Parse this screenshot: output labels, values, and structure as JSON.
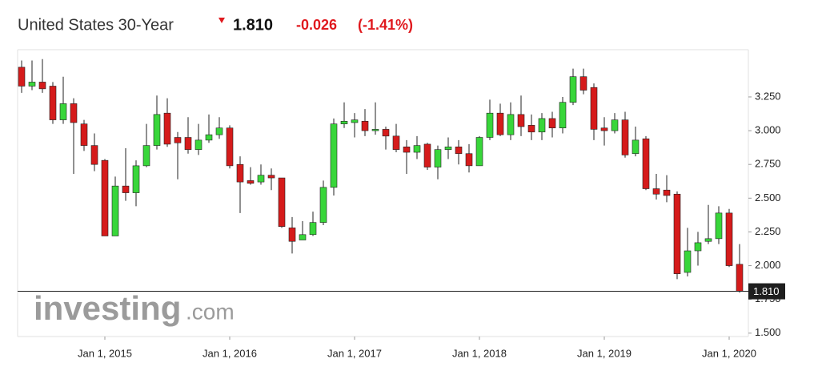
{
  "header": {
    "title": "United States 30-Year",
    "price": "1.810",
    "change": "-0.026",
    "change_pct": "(-1.41%)"
  },
  "watermark": {
    "brand": "investing",
    "suffix": ".com"
  },
  "chart_data": {
    "type": "candlestick",
    "categories": [
      null,
      null,
      null,
      null,
      null,
      null,
      null,
      null,
      "Jan 1, 2015",
      null,
      null,
      null,
      null,
      null,
      null,
      null,
      null,
      null,
      null,
      null,
      "Jan 1, 2016",
      null,
      null,
      null,
      null,
      null,
      null,
      null,
      null,
      null,
      null,
      null,
      "Jan 1, 2017",
      null,
      null,
      null,
      null,
      null,
      null,
      null,
      null,
      null,
      null,
      null,
      "Jan 1, 2018",
      null,
      null,
      null,
      null,
      null,
      null,
      null,
      null,
      null,
      null,
      null,
      "Jan 1, 2019",
      null,
      null,
      null,
      null,
      null,
      null,
      null,
      null,
      null,
      null,
      null,
      "Jan 1, 2020",
      null
    ],
    "open": [
      3.47,
      3.33,
      3.36,
      3.33,
      3.08,
      3.2,
      3.05,
      2.89,
      2.78,
      2.22,
      2.59,
      2.54,
      2.74,
      2.89,
      3.13,
      2.95,
      2.95,
      2.86,
      2.93,
      2.97,
      3.02,
      2.75,
      2.63,
      2.62,
      2.67,
      2.65,
      2.28,
      2.19,
      2.23,
      2.32,
      2.58,
      3.05,
      3.06,
      3.07,
      3.0,
      3.01,
      2.96,
      2.88,
      2.84,
      2.9,
      2.73,
      2.86,
      2.88,
      2.83,
      2.74,
      2.95,
      3.13,
      2.97,
      3.12,
      3.04,
      2.99,
      3.09,
      3.02,
      3.21,
      3.4,
      3.32,
      3.02,
      3.0,
      3.08,
      2.83,
      2.94,
      2.57,
      2.56,
      2.53,
      1.95,
      2.11,
      2.18,
      2.2,
      2.39,
      2.01
    ],
    "high": [
      3.52,
      3.52,
      3.53,
      3.36,
      3.4,
      3.24,
      3.08,
      2.98,
      2.79,
      2.66,
      2.87,
      2.78,
      3.05,
      3.26,
      3.24,
      2.99,
      3.1,
      3.05,
      3.12,
      3.1,
      3.04,
      2.81,
      2.73,
      2.75,
      2.72,
      2.65,
      2.36,
      2.33,
      2.4,
      2.63,
      3.09,
      3.21,
      3.13,
      3.16,
      3.21,
      3.03,
      3.05,
      2.93,
      2.96,
      2.91,
      2.89,
      2.95,
      2.93,
      2.9,
      2.96,
      3.23,
      3.2,
      3.21,
      3.26,
      3.12,
      3.13,
      3.14,
      3.25,
      3.46,
      3.46,
      3.35,
      3.1,
      3.13,
      3.14,
      3.03,
      2.96,
      2.68,
      2.67,
      2.55,
      2.28,
      2.25,
      2.45,
      2.44,
      2.42,
      2.16
    ],
    "low": [
      3.28,
      3.3,
      3.28,
      3.05,
      3.05,
      2.68,
      2.85,
      2.7,
      2.22,
      2.22,
      2.48,
      2.44,
      2.73,
      2.86,
      2.88,
      2.64,
      2.83,
      2.82,
      2.91,
      2.94,
      2.72,
      2.39,
      2.6,
      2.6,
      2.56,
      2.28,
      2.09,
      2.19,
      2.22,
      2.3,
      2.52,
      3.02,
      2.95,
      2.96,
      2.97,
      2.86,
      2.84,
      2.68,
      2.79,
      2.71,
      2.64,
      2.79,
      2.75,
      2.69,
      2.74,
      2.93,
      2.96,
      2.93,
      2.96,
      2.93,
      2.93,
      2.95,
      2.98,
      3.19,
      3.27,
      2.93,
      2.89,
      2.98,
      2.8,
      2.81,
      2.56,
      2.49,
      2.47,
      1.9,
      1.92,
      2.0,
      2.16,
      2.16,
      1.99,
      1.8
    ],
    "close": [
      3.33,
      3.36,
      3.31,
      3.08,
      3.2,
      3.06,
      2.89,
      2.75,
      2.22,
      2.59,
      2.54,
      2.74,
      2.89,
      3.12,
      2.9,
      2.91,
      2.86,
      2.93,
      2.97,
      3.02,
      2.74,
      2.62,
      2.61,
      2.67,
      2.65,
      2.29,
      2.18,
      2.23,
      2.32,
      2.58,
      3.05,
      3.07,
      3.08,
      3.0,
      3.01,
      2.96,
      2.86,
      2.84,
      2.89,
      2.73,
      2.86,
      2.88,
      2.83,
      2.74,
      2.95,
      3.13,
      2.97,
      3.12,
      3.03,
      2.99,
      3.09,
      3.02,
      3.21,
      3.4,
      3.3,
      3.01,
      3.0,
      3.08,
      2.82,
      2.93,
      2.57,
      2.53,
      2.52,
      1.94,
      2.11,
      2.17,
      2.2,
      2.39,
      2.0,
      1.81
    ],
    "up_color": "#38d63a",
    "down_color": "#d51b1b",
    "ylim": [
      1.475,
      3.6
    ],
    "yticks": [
      {
        "value": 1.5,
        "label": "1.500"
      },
      {
        "value": 1.75,
        "label": "1.750"
      },
      {
        "value": 2.0,
        "label": "2.000"
      },
      {
        "value": 2.25,
        "label": "2.250"
      },
      {
        "value": 2.5,
        "label": "2.500"
      },
      {
        "value": 2.75,
        "label": "2.750"
      },
      {
        "value": 3.0,
        "label": "3.000"
      },
      {
        "value": 3.25,
        "label": "3.250"
      }
    ],
    "last_price": {
      "value": 1.81,
      "label": "1.810"
    }
  }
}
